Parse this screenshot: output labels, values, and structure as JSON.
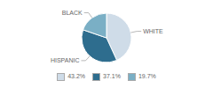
{
  "chart_data": {
    "type": "pie",
    "categories": [
      "WHITE",
      "HISPANIC",
      "BLACK"
    ],
    "values": [
      43.2,
      37.1,
      19.7
    ],
    "value_labels": [
      "43.2%",
      "37.1%",
      "19.7%"
    ],
    "colors": [
      "#cfdce8",
      "#2e6d8e",
      "#7aafc5"
    ],
    "legend": "bottom"
  }
}
